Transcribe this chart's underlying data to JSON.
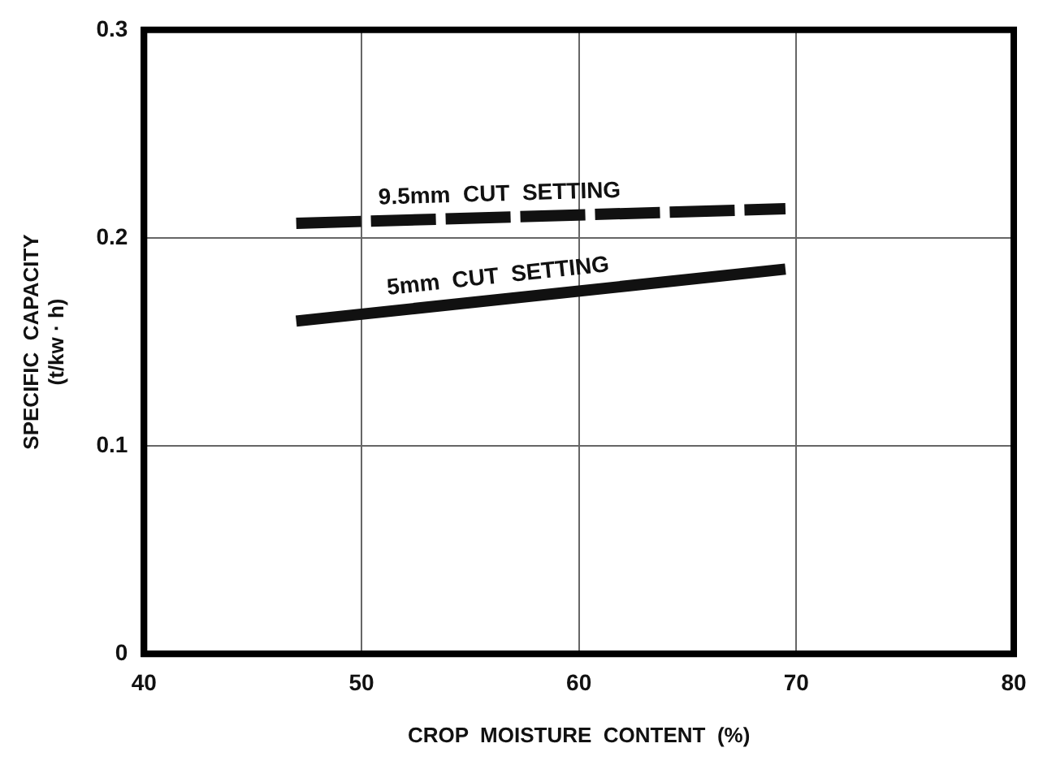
{
  "chart_data": {
    "type": "line",
    "xlabel": "CROP  MOISTURE  CONTENT  (%)",
    "ylabel": "SPECIFIC  CAPACITY\n(t/kw · h)",
    "x": [
      47,
      69.5
    ],
    "series": [
      {
        "name": "9.5mm  CUT  SETTING",
        "color": "#111111",
        "values": [
          0.207,
          0.214
        ],
        "line_style": "dashed"
      },
      {
        "name": "5mm  CUT  SETTING",
        "color": "#111111",
        "values": [
          0.16,
          0.185
        ],
        "line_style": "solid"
      }
    ],
    "xlim": [
      40,
      80
    ],
    "xticks": [
      40,
      50,
      60,
      70,
      80
    ],
    "ylim": [
      0,
      0.3
    ],
    "yticks": [
      0,
      {
        "value": 0.1,
        "label": "0.1"
      },
      {
        "value": 0.2,
        "label": "0.2"
      },
      {
        "value": 0.3,
        "label": "0.3"
      }
    ],
    "grid": true,
    "legend": false,
    "marker": "none"
  }
}
